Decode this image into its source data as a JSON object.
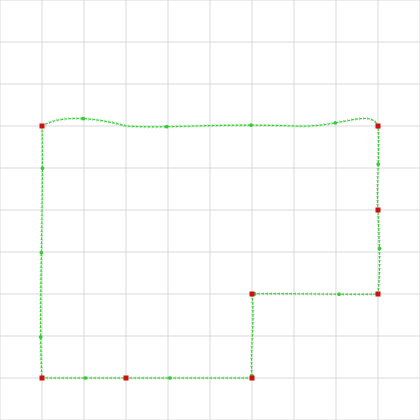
{
  "canvas": {
    "background": "#ffffff",
    "grid": true,
    "grid_color": "#d9d9d9",
    "grid_spacing": 42
  },
  "shape": {
    "kind": "closed-spline-polygon",
    "stroke_color": "#33cc33",
    "stroke_style": "dashed",
    "handle_color": "#33cc33",
    "vertex_color": "#cc1111",
    "vertex_count": 8,
    "midpoint_handle_count": 14,
    "vertices_in_grid_units": [
      [
        1,
        3
      ],
      [
        9,
        3
      ],
      [
        9,
        5
      ],
      [
        9,
        7
      ],
      [
        6,
        7
      ],
      [
        6,
        9
      ],
      [
        3,
        9
      ],
      [
        1,
        9
      ]
    ]
  }
}
